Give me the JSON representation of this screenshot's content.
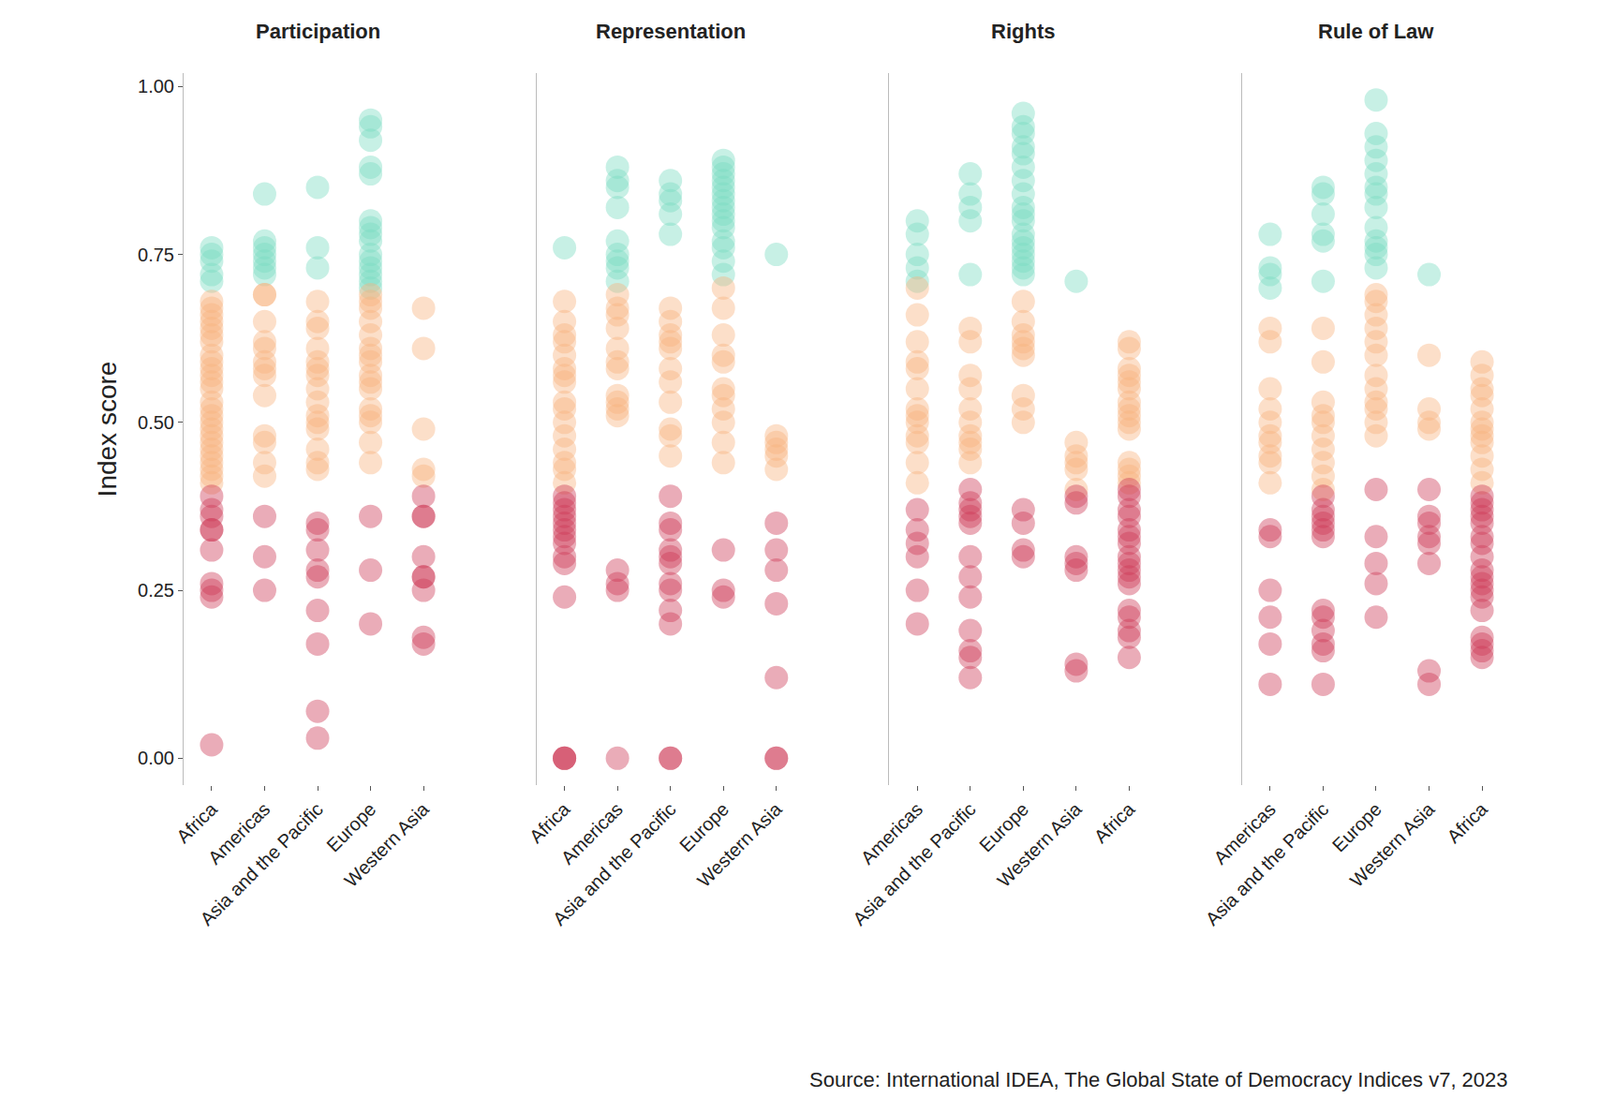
{
  "chart_data": [
    {
      "type": "strip",
      "title": "Participation",
      "y_label": "Index score",
      "categories": [
        "Africa",
        "Americas",
        "Asia and the Pacific",
        "Europe",
        "Western Asia"
      ],
      "ylim": [
        -0.04,
        1.02
      ],
      "yticks": [
        {
          "value": 0,
          "label": "0.00"
        },
        {
          "value": 0.25,
          "label": "0.25"
        },
        {
          "value": 0.5,
          "label": "0.50"
        },
        {
          "value": 0.75,
          "label": "0.75"
        },
        {
          "value": 1,
          "label": "1.00"
        }
      ],
      "grid": false,
      "series": [
        {
          "color": "#79dcc2",
          "values": [
            [
              0.76,
              0.75,
              0.74,
              0.72,
              0.71
            ],
            [
              0.84,
              0.77,
              0.76,
              0.75,
              0.74,
              0.73,
              0.72
            ],
            [
              0.85,
              0.76,
              0.73
            ],
            [
              0.95,
              0.94,
              0.92,
              0.88,
              0.87,
              0.8,
              0.79,
              0.78,
              0.77,
              0.75,
              0.74,
              0.73,
              0.72,
              0.71,
              0.7
            ],
            []
          ]
        },
        {
          "color": "#f9b27f",
          "values": [
            [
              0.68,
              0.67,
              0.66,
              0.65,
              0.64,
              0.63,
              0.62,
              0.6,
              0.59,
              0.58,
              0.57,
              0.56,
              0.55,
              0.53,
              0.52,
              0.51,
              0.5,
              0.49,
              0.48,
              0.47,
              0.46,
              0.45,
              0.44,
              0.43,
              0.42,
              0.41
            ],
            [
              0.69,
              0.69,
              0.65,
              0.62,
              0.61,
              0.59,
              0.58,
              0.57,
              0.54,
              0.48,
              0.47,
              0.44,
              0.42
            ],
            [
              0.68,
              0.65,
              0.64,
              0.61,
              0.59,
              0.58,
              0.57,
              0.55,
              0.53,
              0.51,
              0.5,
              0.49,
              0.46,
              0.44,
              0.43
            ],
            [
              0.69,
              0.68,
              0.67,
              0.65,
              0.63,
              0.61,
              0.6,
              0.59,
              0.57,
              0.56,
              0.55,
              0.52,
              0.51,
              0.5,
              0.47,
              0.44
            ],
            [
              0.67,
              0.61,
              0.49,
              0.43,
              0.42
            ]
          ]
        },
        {
          "color": "#cc3a56",
          "values": [
            [
              0.39,
              0.37,
              0.36,
              0.34,
              0.34,
              0.31,
              0.26,
              0.25,
              0.24,
              0.02
            ],
            [
              0.36,
              0.3,
              0.25
            ],
            [
              0.35,
              0.34,
              0.31,
              0.28,
              0.27,
              0.22,
              0.17,
              0.07,
              0.03
            ],
            [
              0.36,
              0.28,
              0.2
            ],
            [
              0.39,
              0.36,
              0.36,
              0.3,
              0.27,
              0.27,
              0.25,
              0.18,
              0.17
            ]
          ]
        }
      ]
    },
    {
      "type": "strip",
      "title": "Representation",
      "tick_labels": "x",
      "categories": [
        "Africa",
        "Americas",
        "Asia and the Pacific",
        "Europe",
        "Western Asia"
      ],
      "ylim": [
        -0.04,
        1.02
      ],
      "yticks": [
        {
          "value": 0,
          "label": "0.00"
        },
        {
          "value": 0.25,
          "label": "0.25"
        },
        {
          "value": 0.5,
          "label": "0.50"
        },
        {
          "value": 0.75,
          "label": "0.75"
        },
        {
          "value": 1,
          "label": "1.00"
        }
      ],
      "grid": false,
      "series": [
        {
          "color": "#79dcc2",
          "values": [
            [
              0.76
            ],
            [
              0.88,
              0.86,
              0.85,
              0.82,
              0.77,
              0.75,
              0.74,
              0.73,
              0.71
            ],
            [
              0.86,
              0.84,
              0.83,
              0.81,
              0.78
            ],
            [
              0.89,
              0.88,
              0.87,
              0.86,
              0.85,
              0.84,
              0.83,
              0.82,
              0.81,
              0.8,
              0.79,
              0.77,
              0.76,
              0.74,
              0.72
            ],
            [
              0.75
            ]
          ]
        },
        {
          "color": "#f9b27f",
          "values": [
            [
              0.68,
              0.65,
              0.63,
              0.62,
              0.6,
              0.58,
              0.57,
              0.56,
              0.53,
              0.52,
              0.5,
              0.48,
              0.46,
              0.44,
              0.43,
              0.41
            ],
            [
              0.69,
              0.67,
              0.66,
              0.64,
              0.61,
              0.59,
              0.58,
              0.54,
              0.53,
              0.52,
              0.51
            ],
            [
              0.67,
              0.65,
              0.63,
              0.62,
              0.61,
              0.58,
              0.56,
              0.53,
              0.49,
              0.48,
              0.45
            ],
            [
              0.7,
              0.67,
              0.63,
              0.6,
              0.59,
              0.55,
              0.54,
              0.52,
              0.5,
              0.47,
              0.44
            ],
            [
              0.48,
              0.47,
              0.46,
              0.45,
              0.43
            ]
          ]
        },
        {
          "color": "#cc3a56",
          "values": [
            [
              0.39,
              0.38,
              0.37,
              0.36,
              0.35,
              0.34,
              0.33,
              0.32,
              0.3,
              0.29,
              0.24,
              0,
              0,
              0
            ],
            [
              0.28,
              0.26,
              0.25,
              0
            ],
            [
              0.39,
              0.35,
              0.34,
              0.31,
              0.3,
              0.29,
              0.26,
              0.25,
              0.22,
              0.2,
              0,
              0
            ],
            [
              0.31,
              0.25,
              0.24
            ],
            [
              0.35,
              0.31,
              0.28,
              0.23,
              0.12,
              0,
              0
            ]
          ]
        }
      ]
    },
    {
      "type": "strip",
      "title": "Rights",
      "tick_labels": "x",
      "categories": [
        "Africa",
        "Americas",
        "Asia and the Pacific",
        "Europe",
        "Western Asia"
      ],
      "ylim": [
        -0.04,
        1.02
      ],
      "yticks": [
        {
          "value": 0,
          "label": "0.00"
        },
        {
          "value": 0.25,
          "label": "0.25"
        },
        {
          "value": 0.5,
          "label": "0.50"
        },
        {
          "value": 0.75,
          "label": "0.75"
        },
        {
          "value": 1,
          "label": "1.00"
        }
      ],
      "grid": false,
      "series": [
        {
          "color": "#79dcc2",
          "values": [
            [],
            [
              0.8,
              0.78,
              0.75,
              0.73,
              0.71
            ],
            [
              0.87,
              0.84,
              0.82,
              0.8,
              0.72
            ],
            [
              0.96,
              0.94,
              0.93,
              0.91,
              0.9,
              0.88,
              0.86,
              0.84,
              0.82,
              0.81,
              0.8,
              0.78,
              0.77,
              0.76,
              0.75,
              0.74,
              0.73,
              0.72
            ],
            [
              0.71
            ]
          ]
        },
        {
          "color": "#f9b27f",
          "values": [
            [
              0.62,
              0.61,
              0.58,
              0.57,
              0.56,
              0.55,
              0.53,
              0.52,
              0.51,
              0.5,
              0.49,
              0.44,
              0.43,
              0.42,
              0.41
            ],
            [
              0.7,
              0.66,
              0.62,
              0.59,
              0.58,
              0.55,
              0.52,
              0.51,
              0.5,
              0.48,
              0.47,
              0.44,
              0.41
            ],
            [
              0.64,
              0.62,
              0.57,
              0.55,
              0.52,
              0.5,
              0.48,
              0.47,
              0.46,
              0.44
            ],
            [
              0.68,
              0.65,
              0.63,
              0.62,
              0.61,
              0.6,
              0.54,
              0.52,
              0.5
            ],
            [
              0.47,
              0.45,
              0.44,
              0.43,
              0.4
            ]
          ]
        },
        {
          "color": "#cc3a56",
          "values": [
            [
              0.4,
              0.39,
              0.37,
              0.36,
              0.34,
              0.33,
              0.32,
              0.3,
              0.29,
              0.28,
              0.27,
              0.26,
              0.22,
              0.21,
              0.19,
              0.18,
              0.15
            ],
            [
              0.37,
              0.34,
              0.32,
              0.3,
              0.25,
              0.2
            ],
            [
              0.4,
              0.38,
              0.37,
              0.36,
              0.35,
              0.3,
              0.27,
              0.24,
              0.19,
              0.16,
              0.15,
              0.12
            ],
            [
              0.37,
              0.35,
              0.31,
              0.3
            ],
            [
              0.39,
              0.38,
              0.3,
              0.29,
              0.28,
              0.14,
              0.13
            ]
          ]
        }
      ]
    },
    {
      "type": "strip",
      "title": "Rule of Law",
      "tick_labels": "x",
      "categories": [
        "Africa",
        "Americas",
        "Asia and the Pacific",
        "Europe",
        "Western Asia"
      ],
      "ylim": [
        -0.04,
        1.02
      ],
      "yticks": [
        {
          "value": 0,
          "label": "0.00"
        },
        {
          "value": 0.25,
          "label": "0.25"
        },
        {
          "value": 0.5,
          "label": "0.50"
        },
        {
          "value": 0.75,
          "label": "0.75"
        },
        {
          "value": 1,
          "label": "1.00"
        }
      ],
      "grid": false,
      "series": [
        {
          "color": "#79dcc2",
          "values": [
            [],
            [
              0.78,
              0.73,
              0.72,
              0.7
            ],
            [
              0.85,
              0.84,
              0.81,
              0.78,
              0.77,
              0.71
            ],
            [
              0.98,
              0.93,
              0.91,
              0.89,
              0.87,
              0.85,
              0.84,
              0.82,
              0.79,
              0.77,
              0.76,
              0.75,
              0.73
            ],
            [
              0.72
            ]
          ]
        },
        {
          "color": "#f9b27f",
          "values": [
            [
              0.59,
              0.57,
              0.55,
              0.54,
              0.52,
              0.5,
              0.49,
              0.48,
              0.47,
              0.45,
              0.43,
              0.41
            ],
            [
              0.64,
              0.62,
              0.55,
              0.52,
              0.5,
              0.48,
              0.47,
              0.45,
              0.44,
              0.41
            ],
            [
              0.64,
              0.59,
              0.53,
              0.51,
              0.5,
              0.48,
              0.46,
              0.44,
              0.42,
              0.4
            ],
            [
              0.69,
              0.68,
              0.66,
              0.64,
              0.62,
              0.6,
              0.57,
              0.55,
              0.53,
              0.52,
              0.5,
              0.48
            ],
            [
              0.6,
              0.52,
              0.5,
              0.49
            ]
          ]
        },
        {
          "color": "#cc3a56",
          "values": [
            [
              0.39,
              0.38,
              0.37,
              0.36,
              0.35,
              0.33,
              0.32,
              0.3,
              0.28,
              0.27,
              0.26,
              0.25,
              0.24,
              0.22,
              0.18,
              0.17,
              0.16,
              0.15
            ],
            [
              0.34,
              0.33,
              0.25,
              0.21,
              0.17,
              0.11
            ],
            [
              0.39,
              0.37,
              0.36,
              0.35,
              0.34,
              0.33,
              0.22,
              0.21,
              0.19,
              0.17,
              0.16,
              0.11
            ],
            [
              0.4,
              0.33,
              0.29,
              0.26,
              0.21
            ],
            [
              0.4,
              0.36,
              0.35,
              0.33,
              0.32,
              0.29,
              0.13,
              0.11
            ]
          ]
        }
      ]
    }
  ],
  "source": "Source: International IDEA, The Global State of Democracy Indices v7, 2023"
}
